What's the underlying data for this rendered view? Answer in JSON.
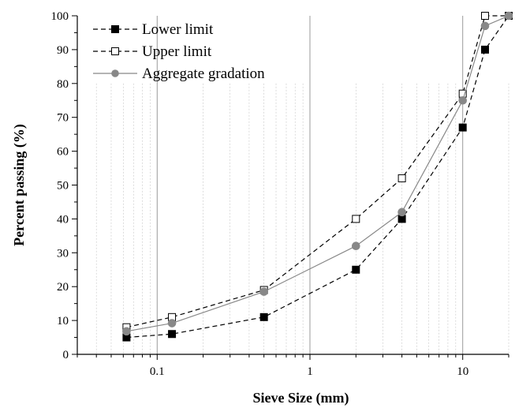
{
  "chart_data": {
    "type": "line",
    "title": "",
    "xlabel": "Sieve Size (mm)",
    "ylabel": "Percent passing (%)",
    "x_scale": "log",
    "xlim": [
      0.03,
      20
    ],
    "ylim": [
      0,
      100
    ],
    "x_ticks": [
      0.1,
      1,
      10
    ],
    "x_tick_labels": [
      "0.1",
      "1",
      "10"
    ],
    "y_ticks": [
      0,
      10,
      20,
      30,
      40,
      50,
      60,
      70,
      80,
      90,
      100
    ],
    "y_tick_labels": [
      "0",
      "10",
      "20",
      "30",
      "40",
      "50",
      "60",
      "70",
      "80",
      "90",
      "100"
    ],
    "grid": "vertical minor gridlines",
    "legend_position": "top-left",
    "x": [
      0.063,
      0.125,
      0.5,
      2,
      4,
      10,
      14,
      20
    ],
    "series": [
      {
        "name": "Lower limit",
        "values": [
          5,
          6,
          11,
          25,
          40,
          67,
          90,
          100
        ],
        "color": "#000000",
        "line_style": "dashed",
        "marker": "filled-square"
      },
      {
        "name": "Upper limit",
        "values": [
          8,
          11,
          19,
          40,
          52,
          77,
          100,
          100
        ],
        "color": "#000000",
        "line_style": "dashed",
        "marker": "open-square"
      },
      {
        "name": "Aggregate gradation",
        "values": [
          6.8,
          9.2,
          18.5,
          32,
          42,
          75,
          97,
          100
        ],
        "color": "#888888",
        "line_style": "solid",
        "marker": "filled-circle"
      }
    ]
  }
}
